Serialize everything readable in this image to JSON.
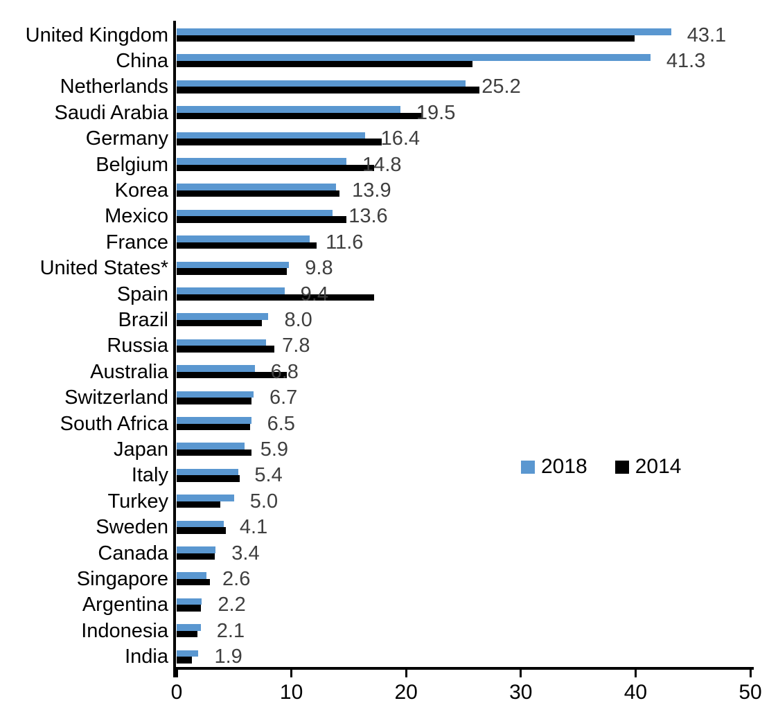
{
  "chart_data": {
    "type": "bar",
    "orientation": "horizontal",
    "title": "",
    "xlabel": "",
    "ylabel": "",
    "xlim": [
      0,
      50
    ],
    "x_ticks": [
      "0",
      "10",
      "20",
      "30",
      "40",
      "50"
    ],
    "grid": false,
    "categories": [
      "United Kingdom",
      "China",
      "Netherlands",
      "Saudi Arabia",
      "Germany",
      "Belgium",
      "Korea",
      "Mexico",
      "France",
      "United States*",
      "Spain",
      "Brazil",
      "Russia",
      "Australia",
      "Switzerland",
      "South Africa",
      "Japan",
      "Italy",
      "Turkey",
      "Sweden",
      "Canada",
      "Singapore",
      "Argentina",
      "Indonesia",
      "India"
    ],
    "series": [
      {
        "name": "2018",
        "color": "#5A97D0",
        "values": [
          43.1,
          41.3,
          25.2,
          19.5,
          16.4,
          14.8,
          13.9,
          13.6,
          11.6,
          9.8,
          9.4,
          8.0,
          7.8,
          6.8,
          6.7,
          6.5,
          5.9,
          5.4,
          5.0,
          4.1,
          3.4,
          2.6,
          2.2,
          2.1,
          1.9
        ]
      },
      {
        "name": "2014",
        "color": "#000000",
        "values": [
          39.9,
          25.8,
          26.4,
          21.4,
          17.9,
          17.2,
          14.2,
          14.8,
          12.2,
          9.6,
          17.2,
          7.4,
          8.5,
          9.6,
          6.5,
          6.4,
          6.5,
          5.5,
          3.8,
          4.3,
          3.3,
          2.9,
          2.1,
          1.8,
          1.3
        ]
      }
    ],
    "data_labels": [
      "43.1",
      "41.3",
      "25.2",
      "19.5",
      "16.4",
      "14.8",
      "13.9",
      "13.6",
      "11.6",
      "9.8",
      "9.4",
      "8.0",
      "7.8",
      "6.8",
      "6.7",
      "6.5",
      "5.9",
      "5.4",
      "5.0",
      "4.1",
      "3.4",
      "2.6",
      "2.2",
      "2.1",
      "1.9"
    ],
    "data_label_series": "2018",
    "data_label_color": "#3f3f3f",
    "axis_color": "#000000",
    "legend": {
      "position": "middle-right",
      "entries": [
        {
          "label": "2018",
          "color": "#5A97D0"
        },
        {
          "label": "2014",
          "color": "#000000"
        }
      ]
    }
  }
}
